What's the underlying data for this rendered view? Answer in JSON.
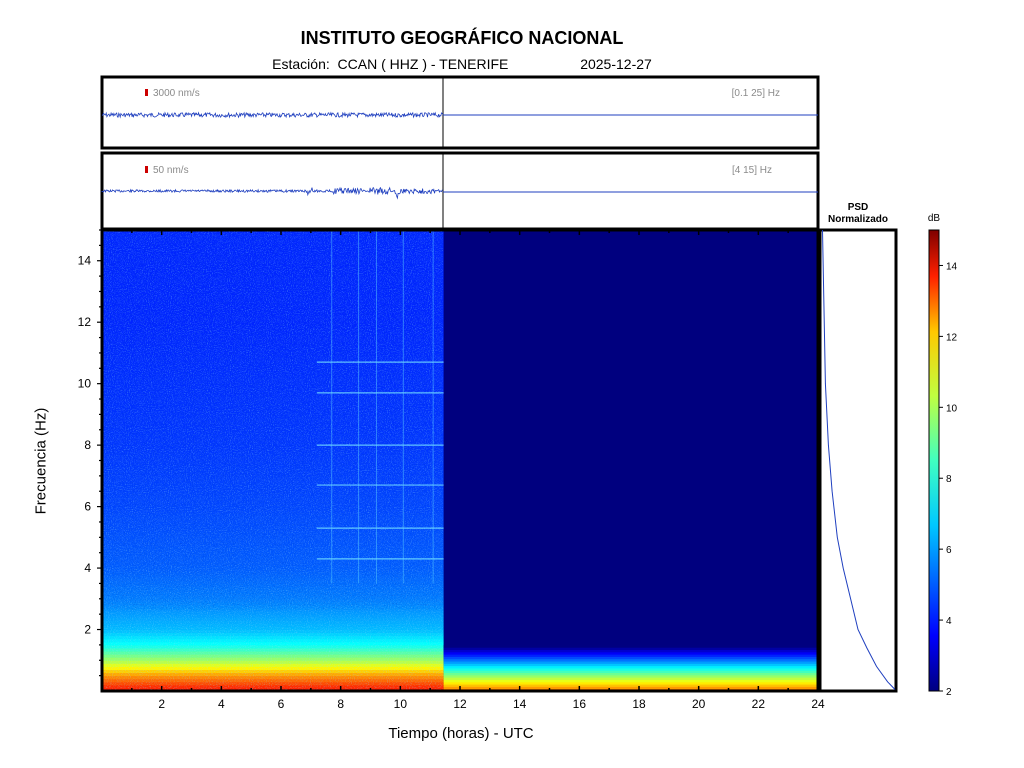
{
  "header": {
    "title": "INSTITUTO GEOGRÁFICO NACIONAL",
    "station_prefix": "Estación:",
    "station": "CCAN ( HHZ ) - TENERIFE",
    "date": "2025-12-27"
  },
  "traces": [
    {
      "scale_label": "3000 nm/s",
      "band_label": "[0.1 25] Hz"
    },
    {
      "scale_label": "50 nm/s",
      "band_label": "[4 15] Hz"
    }
  ],
  "psd": {
    "title_line1": "PSD",
    "title_line2": "Normalizado"
  },
  "colorbar": {
    "label": "dB",
    "ticks": [
      2,
      4,
      6,
      8,
      10,
      12,
      14
    ],
    "range": [
      2,
      15
    ]
  },
  "colors": {
    "trace": "#1f3fbf",
    "marker": "#cc0000",
    "frame": "#000000"
  },
  "chart_data": [
    {
      "type": "heatmap",
      "title": "",
      "xlabel": "Tiempo (horas) - UTC",
      "ylabel": "Frecuencia  (Hz)",
      "xlim": [
        0,
        24
      ],
      "ylim": [
        0,
        15
      ],
      "xticks": [
        2,
        4,
        6,
        8,
        10,
        12,
        14,
        16,
        18,
        20,
        22,
        24
      ],
      "yticks": [
        2,
        4,
        6,
        8,
        10,
        12,
        14
      ],
      "data_end_hour": 11.45,
      "power_db_by_frequency_profile": {
        "frequency_hz": [
          0.1,
          0.5,
          1,
          1.5,
          2,
          3,
          4,
          6,
          8,
          10,
          12,
          15
        ],
        "power_db": [
          13,
          11.5,
          9,
          7,
          6,
          5.2,
          4.8,
          4.5,
          4.3,
          4.2,
          4.1,
          4.1
        ]
      },
      "spectral_lines_hz": [
        4.3,
        5.3,
        6.7,
        8.0,
        9.7,
        10.7
      ]
    },
    {
      "type": "line",
      "title": "PSD Normalizado",
      "xlabel": "",
      "ylabel": "",
      "ylim": [
        0,
        15
      ],
      "x": [
        0.02,
        0.06,
        0.1,
        0.15,
        0.22,
        0.3,
        0.4,
        0.5,
        0.62,
        0.75,
        0.9,
        1.0
      ],
      "y": [
        15,
        10,
        8,
        6.5,
        5,
        4,
        3,
        2,
        1.4,
        0.8,
        0.3,
        0.05
      ]
    }
  ]
}
